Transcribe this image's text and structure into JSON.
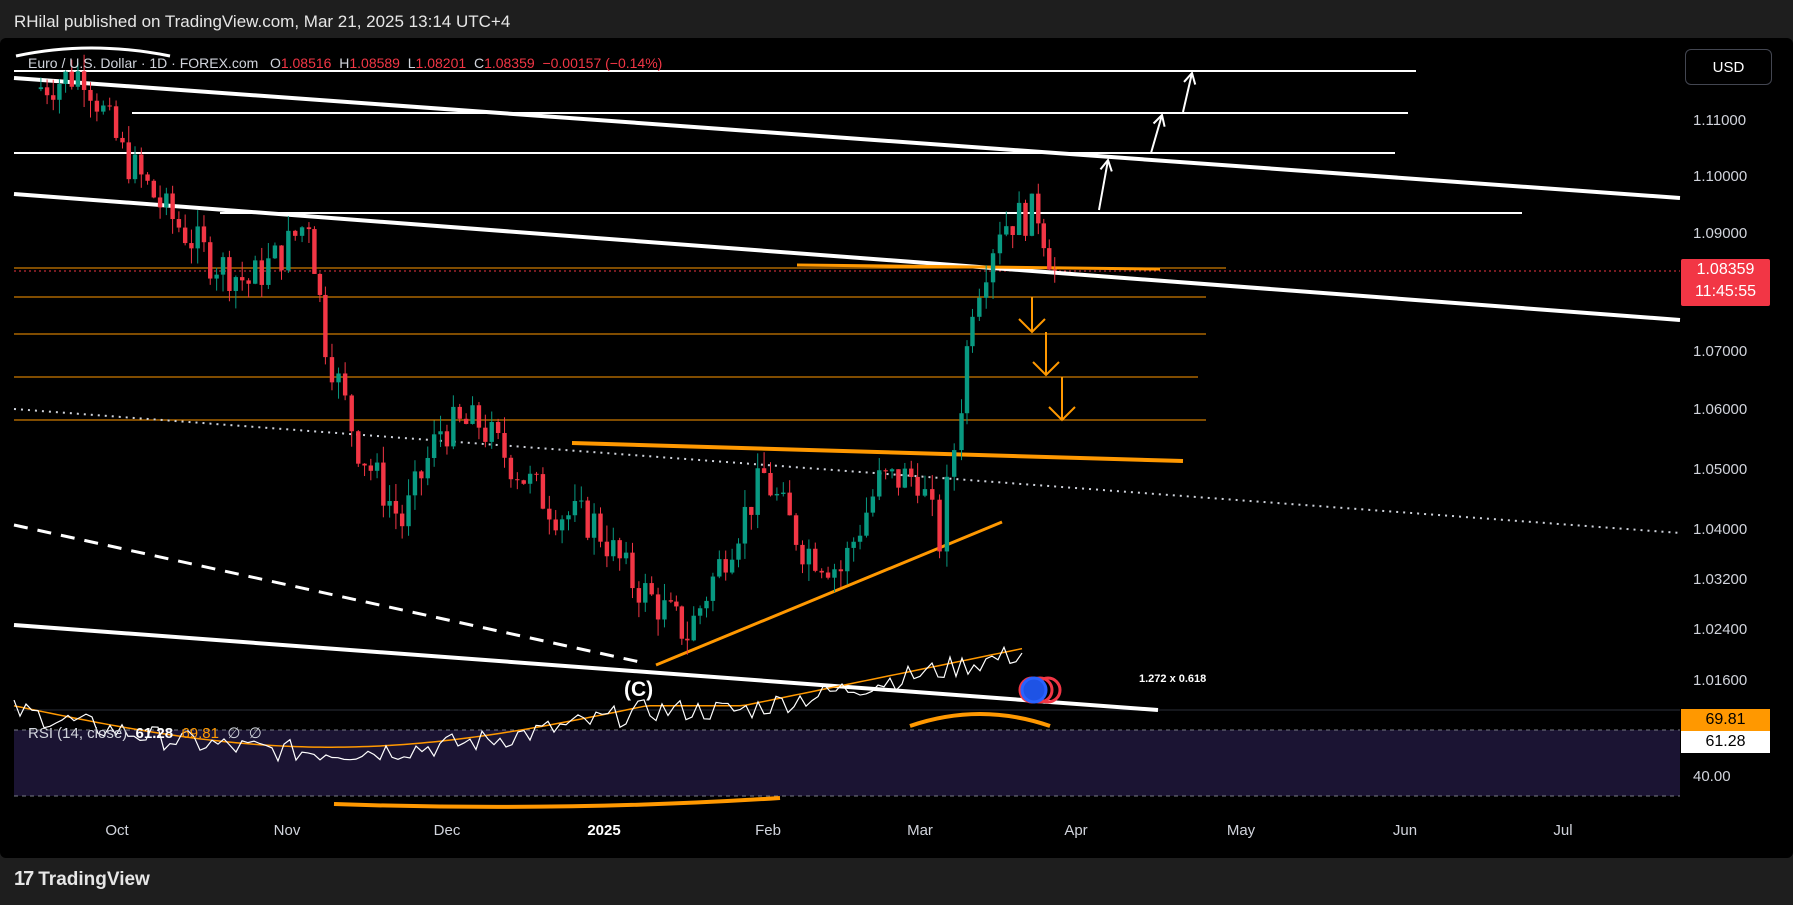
{
  "header": {
    "publisher": "RHilal published on TradingView.com, Mar 21, 2025 13:14 UTC+4"
  },
  "legend": {
    "symbol": "Euro / U.S. Dollar · 1D · FOREX.com",
    "o_label": "O",
    "o": "1.08516",
    "h_label": "H",
    "h": "1.08589",
    "l_label": "L",
    "l": "1.08201",
    "c_label": "C",
    "c": "1.08359",
    "change": "−0.00157 (−0.14%)"
  },
  "currency_button": "USD",
  "price_axis": [
    "1.11000",
    "1.10000",
    "1.09000",
    "1.07000",
    "1.06000",
    "1.05000",
    "1.04000",
    "1.03200",
    "1.02400",
    "1.01600"
  ],
  "last_price": {
    "value": "1.08359",
    "countdown": "11:45:55",
    "color": "#f23645"
  },
  "time_axis": [
    {
      "label": "Oct",
      "bold": false
    },
    {
      "label": "Nov",
      "bold": false
    },
    {
      "label": "Dec",
      "bold": false
    },
    {
      "label": "2025",
      "bold": true
    },
    {
      "label": "Feb",
      "bold": false
    },
    {
      "label": "Mar",
      "bold": false
    },
    {
      "label": "Apr",
      "bold": false
    },
    {
      "label": "May",
      "bold": false
    },
    {
      "label": "Jun",
      "bold": false
    },
    {
      "label": "Jul",
      "bold": false
    }
  ],
  "annotations": {
    "wave_label": "(C)",
    "fib_label": "1.272 x 0.618"
  },
  "rsi": {
    "legend_name": "RSI (14, close)",
    "value": "61.28",
    "ma": "69.81",
    "extra1": "∅",
    "extra2": "∅",
    "level_label": "40.00",
    "colors": {
      "rsi": "#ffffff",
      "ma": "#ff9800"
    }
  },
  "footer": {
    "brand": "TradingView"
  },
  "colors": {
    "up": "#089981",
    "down": "#f23645",
    "trend": "#ffffff",
    "orange": "#ff9800"
  },
  "chart_data": {
    "type": "candlestick",
    "symbol": "EURUSD",
    "timeframe": "1D",
    "ylim": [
      1.014,
      1.127
    ],
    "close_path": [
      [
        "2024-09-16",
        1.115
      ],
      [
        "2024-09-25",
        1.118
      ],
      [
        "2024-10-02",
        1.104
      ],
      [
        "2024-10-10",
        1.094
      ],
      [
        "2024-10-18",
        1.086
      ],
      [
        "2024-10-25",
        1.082
      ],
      [
        "2024-10-31",
        1.087
      ],
      [
        "2024-11-05",
        1.093
      ],
      [
        "2024-11-08",
        1.072
      ],
      [
        "2024-11-14",
        1.054
      ],
      [
        "2024-11-22",
        1.041
      ],
      [
        "2024-11-29",
        1.057
      ],
      [
        "2024-12-06",
        1.058
      ],
      [
        "2024-12-13",
        1.05
      ],
      [
        "2024-12-20",
        1.043
      ],
      [
        "2024-12-27",
        1.041
      ],
      [
        "2025-01-03",
        1.031
      ],
      [
        "2025-01-10",
        1.025
      ],
      [
        "2025-01-13",
        1.022
      ],
      [
        "2025-01-20",
        1.036
      ],
      [
        "2025-01-27",
        1.049
      ],
      [
        "2025-02-03",
        1.037
      ],
      [
        "2025-02-10",
        1.033
      ],
      [
        "2025-02-17",
        1.048
      ],
      [
        "2025-02-24",
        1.049
      ],
      [
        "2025-02-28",
        1.038
      ],
      [
        "2025-03-04",
        1.062
      ],
      [
        "2025-03-06",
        1.079
      ],
      [
        "2025-03-11",
        1.092
      ],
      [
        "2025-03-18",
        1.094
      ],
      [
        "2025-03-21",
        1.08359
      ]
    ],
    "rsi_last": 61.28,
    "rsi_ma_last": 69.81
  }
}
